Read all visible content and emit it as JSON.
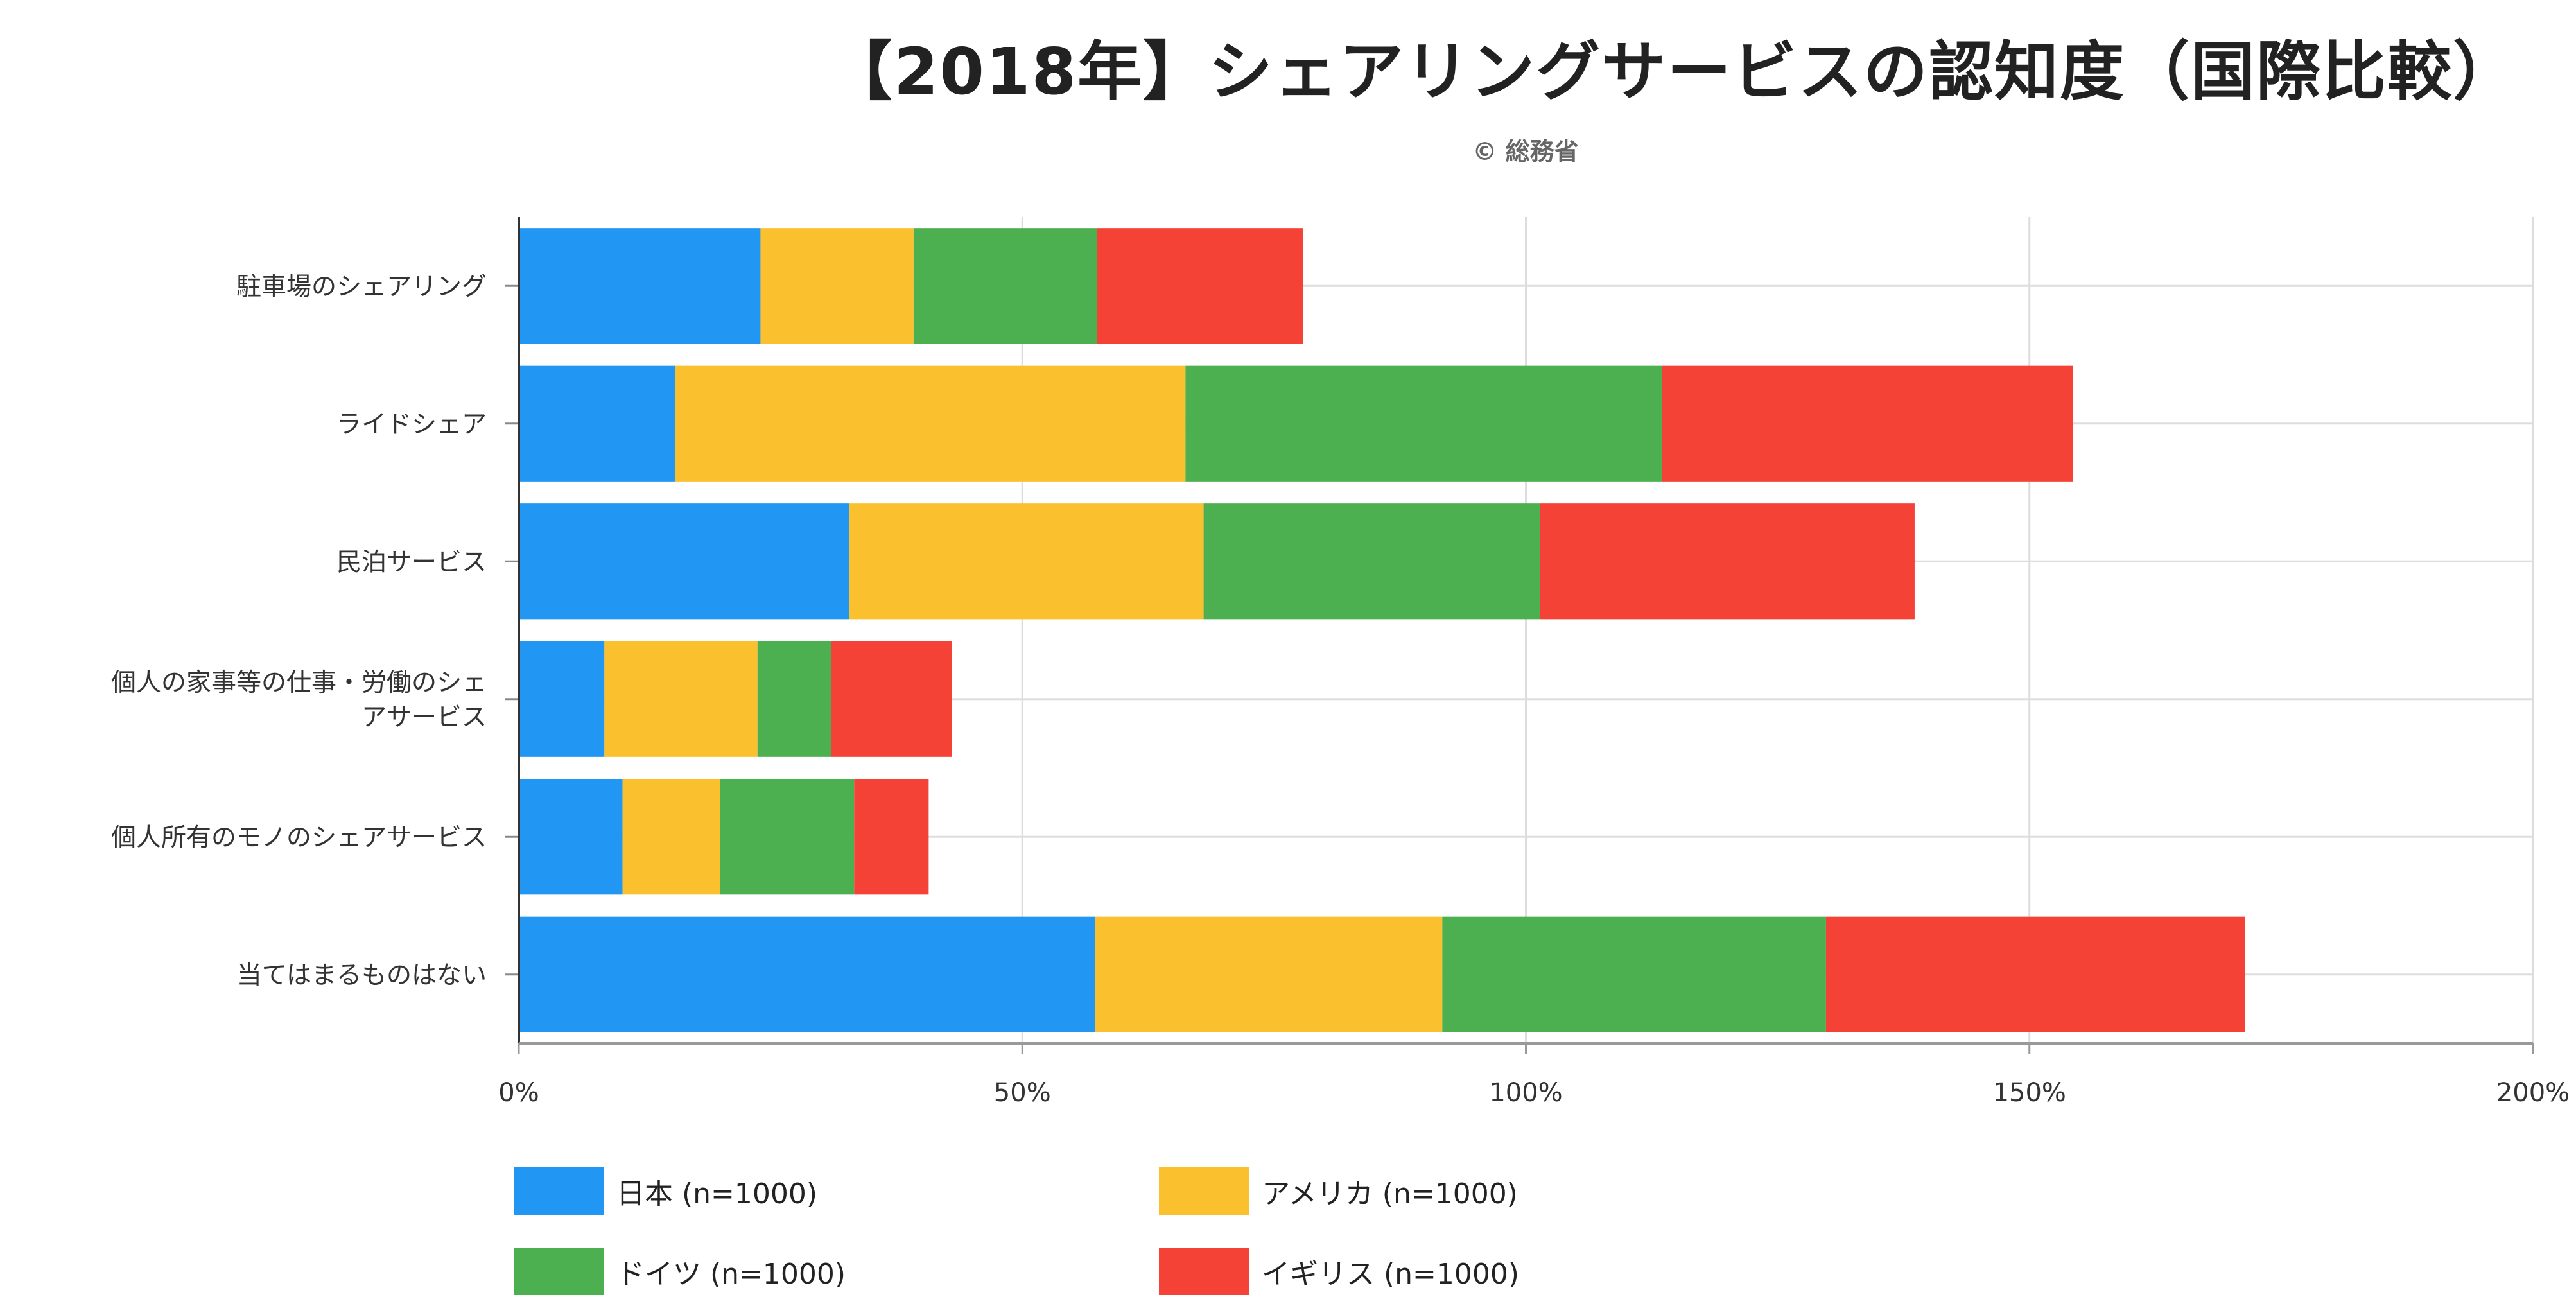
{
  "title": "【2018年】シェアリングサービスの認知度（国際比較）",
  "source": "© 総務省",
  "chart_data": {
    "type": "bar",
    "orientation": "horizontal",
    "stacked": true,
    "categories": [
      "駐車場のシェアリング",
      "ライドシェア",
      "民泊サービス",
      [
        "個人の家事等の仕事・労働のシェ",
        "アサービス"
      ],
      "個人所有のモノのシェアサービス",
      "当てはまるものはない"
    ],
    "series": [
      {
        "name": "日本 (n=1000)",
        "color": "#2196f3",
        "values": [
          24,
          15.5,
          32.8,
          8.5,
          10.3,
          57.2
        ]
      },
      {
        "name": "アメリカ (n=1000)",
        "color": "#fbc02d",
        "values": [
          15.2,
          50.7,
          35.2,
          15.2,
          9.7,
          34.5
        ]
      },
      {
        "name": "ドイツ (n=1000)",
        "color": "#4caf50",
        "values": [
          18.2,
          47.3,
          33.4,
          7.3,
          13.3,
          38.1
        ]
      },
      {
        "name": "イギリス (n=1000)",
        "color": "#f44336",
        "values": [
          20.5,
          40.8,
          37.2,
          12.0,
          7.4,
          41.6
        ]
      }
    ],
    "xlim": [
      0,
      200
    ],
    "xticks": [
      "0%",
      "50%",
      "100%",
      "150%",
      "200%"
    ],
    "grid": true,
    "legend_position": "bottom"
  }
}
